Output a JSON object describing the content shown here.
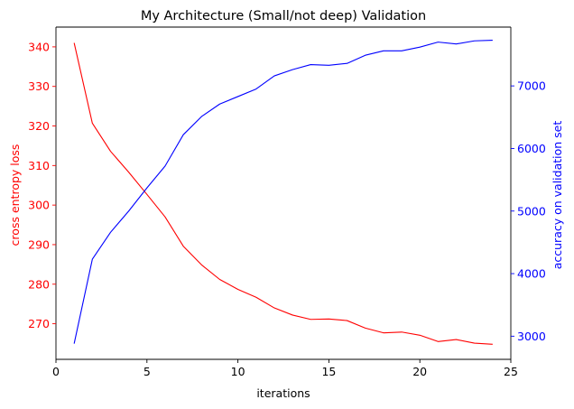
{
  "chart_data": {
    "type": "line",
    "title": "My Architecture (Small/not deep) Validation",
    "xlabel": "iterations",
    "ylabel_left": "cross entropy loss",
    "ylabel_right": "accuracy on validation set",
    "xlim": [
      0,
      25
    ],
    "ylim_left": [
      261,
      345
    ],
    "ylim_right": [
      2630,
      7940
    ],
    "x_ticks": [
      0,
      5,
      10,
      15,
      20,
      25
    ],
    "y_ticks_left": [
      270,
      280,
      290,
      300,
      310,
      320,
      330,
      340
    ],
    "y_ticks_right": [
      3000,
      4000,
      5000,
      6000,
      7000
    ],
    "grid": false,
    "colors": {
      "left": "#ff0000",
      "right": "#0000ff",
      "axes": "#000000"
    },
    "x": [
      1,
      2,
      3,
      4,
      5,
      6,
      7,
      8,
      9,
      10,
      11,
      12,
      13,
      14,
      15,
      16,
      17,
      18,
      19,
      20,
      21,
      22,
      23,
      24
    ],
    "series": [
      {
        "name": "cross entropy loss",
        "axis": "left",
        "color": "#ff0000",
        "values": [
          341,
          320.7,
          313.6,
          308.3,
          302.7,
          297.0,
          289.6,
          284.9,
          281.2,
          278.7,
          276.7,
          274.0,
          272.2,
          271.1,
          271.2,
          270.8,
          268.9,
          267.7,
          267.9,
          267.1,
          265.5,
          266.0,
          265.1,
          264.8
        ]
      },
      {
        "name": "accuracy on validation set",
        "axis": "right",
        "color": "#0000ff",
        "values": [
          2880,
          4230,
          4660,
          5000,
          5370,
          5720,
          6220,
          6510,
          6710,
          6830,
          6950,
          7160,
          7260,
          7340,
          7330,
          7360,
          7490,
          7560,
          7560,
          7620,
          7700,
          7670,
          7720,
          7730
        ]
      }
    ]
  }
}
